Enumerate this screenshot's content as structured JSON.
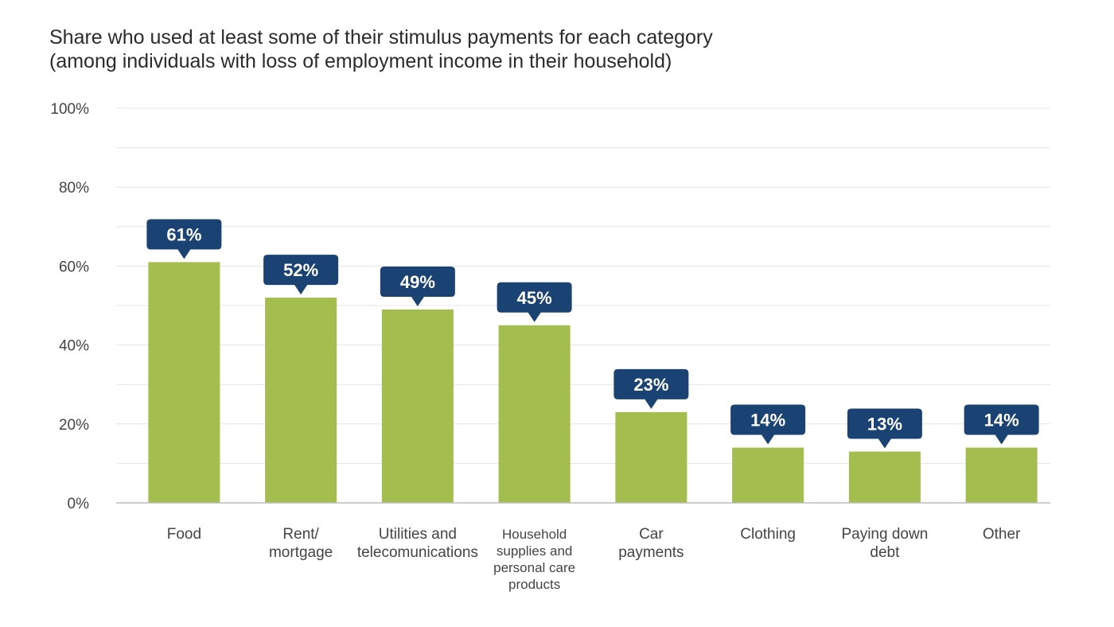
{
  "chart_data": {
    "type": "bar",
    "title": "Share who used at least some of their stimulus payments for each category",
    "subtitle": "(among individuals with loss of employment income in their household)",
    "categories": [
      "Food",
      "Rent/\nmortgage",
      "Utilities and\ntelecomunications",
      "Household\nsupplies and\npersonal care\nproducts",
      "Car\npayments",
      "Clothing",
      "Paying down\ndebt",
      "Other"
    ],
    "values": [
      61,
      52,
      49,
      45,
      23,
      14,
      13,
      14
    ],
    "data_labels": [
      "61%",
      "52%",
      "49%",
      "45%",
      "23%",
      "14%",
      "13%",
      "14%"
    ],
    "y_ticks": [
      {
        "value": 0,
        "label": "0%"
      },
      {
        "value": 20,
        "label": "20%"
      },
      {
        "value": 40,
        "label": "40%"
      },
      {
        "value": 60,
        "label": "60%"
      },
      {
        "value": 80,
        "label": "80%"
      },
      {
        "value": 100,
        "label": "100%"
      }
    ],
    "ylim": [
      0,
      100
    ],
    "minor_gridline_step": 10,
    "grid": true,
    "legend": "none",
    "xlabel": "",
    "ylabel": "",
    "colors": {
      "bar": "#a4bd4f",
      "data_label_bg": "#1a4373",
      "data_label_text": "#ffffff",
      "gridline": "#e4e4e4",
      "axis": "#bdbdbd"
    }
  }
}
